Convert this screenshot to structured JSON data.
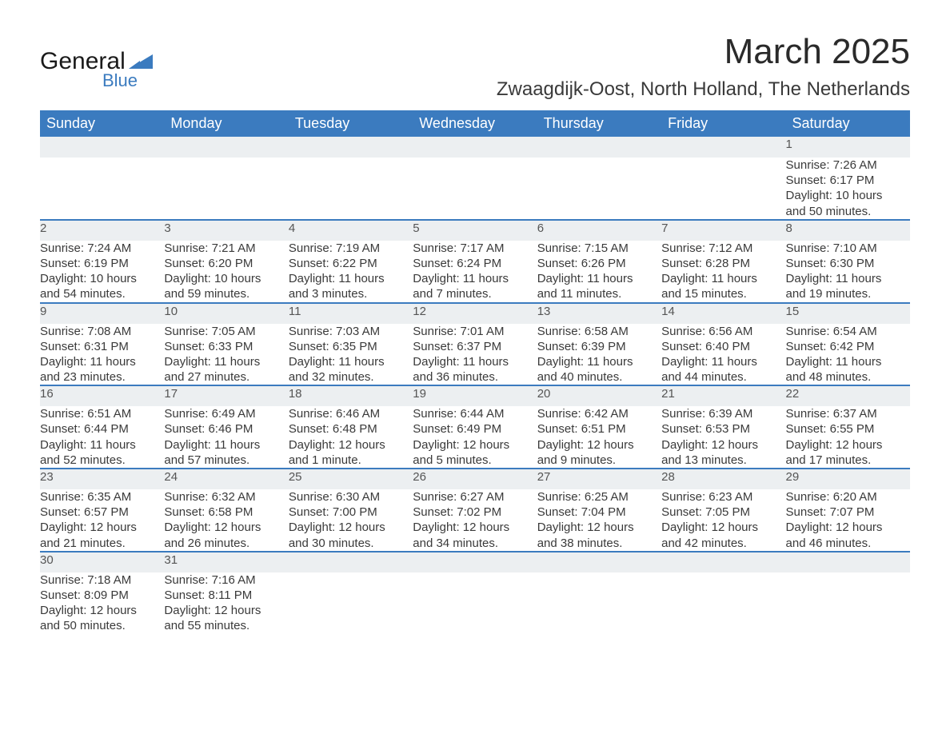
{
  "logo": {
    "main": "General",
    "sub": "Blue",
    "triangle_color": "#3b7bbf"
  },
  "title": "March 2025",
  "location": "Zwaagdijk-Oost, North Holland, The Netherlands",
  "colors": {
    "header_bg": "#3b7bbf",
    "header_text": "#ffffff",
    "daynum_bg": "#eceff1",
    "row_divider": "#3b7bbf",
    "text": "#3a3a3a",
    "background": "#ffffff"
  },
  "fonts": {
    "title_size_pt": 33,
    "location_size_pt": 18,
    "header_size_pt": 14,
    "body_size_pt": 11
  },
  "weekdays": [
    "Sunday",
    "Monday",
    "Tuesday",
    "Wednesday",
    "Thursday",
    "Friday",
    "Saturday"
  ],
  "weeks": [
    [
      null,
      null,
      null,
      null,
      null,
      null,
      {
        "d": "1",
        "sr": "Sunrise: 7:26 AM",
        "ss": "Sunset: 6:17 PM",
        "dl1": "Daylight: 10 hours",
        "dl2": "and 50 minutes."
      }
    ],
    [
      {
        "d": "2",
        "sr": "Sunrise: 7:24 AM",
        "ss": "Sunset: 6:19 PM",
        "dl1": "Daylight: 10 hours",
        "dl2": "and 54 minutes."
      },
      {
        "d": "3",
        "sr": "Sunrise: 7:21 AM",
        "ss": "Sunset: 6:20 PM",
        "dl1": "Daylight: 10 hours",
        "dl2": "and 59 minutes."
      },
      {
        "d": "4",
        "sr": "Sunrise: 7:19 AM",
        "ss": "Sunset: 6:22 PM",
        "dl1": "Daylight: 11 hours",
        "dl2": "and 3 minutes."
      },
      {
        "d": "5",
        "sr": "Sunrise: 7:17 AM",
        "ss": "Sunset: 6:24 PM",
        "dl1": "Daylight: 11 hours",
        "dl2": "and 7 minutes."
      },
      {
        "d": "6",
        "sr": "Sunrise: 7:15 AM",
        "ss": "Sunset: 6:26 PM",
        "dl1": "Daylight: 11 hours",
        "dl2": "and 11 minutes."
      },
      {
        "d": "7",
        "sr": "Sunrise: 7:12 AM",
        "ss": "Sunset: 6:28 PM",
        "dl1": "Daylight: 11 hours",
        "dl2": "and 15 minutes."
      },
      {
        "d": "8",
        "sr": "Sunrise: 7:10 AM",
        "ss": "Sunset: 6:30 PM",
        "dl1": "Daylight: 11 hours",
        "dl2": "and 19 minutes."
      }
    ],
    [
      {
        "d": "9",
        "sr": "Sunrise: 7:08 AM",
        "ss": "Sunset: 6:31 PM",
        "dl1": "Daylight: 11 hours",
        "dl2": "and 23 minutes."
      },
      {
        "d": "10",
        "sr": "Sunrise: 7:05 AM",
        "ss": "Sunset: 6:33 PM",
        "dl1": "Daylight: 11 hours",
        "dl2": "and 27 minutes."
      },
      {
        "d": "11",
        "sr": "Sunrise: 7:03 AM",
        "ss": "Sunset: 6:35 PM",
        "dl1": "Daylight: 11 hours",
        "dl2": "and 32 minutes."
      },
      {
        "d": "12",
        "sr": "Sunrise: 7:01 AM",
        "ss": "Sunset: 6:37 PM",
        "dl1": "Daylight: 11 hours",
        "dl2": "and 36 minutes."
      },
      {
        "d": "13",
        "sr": "Sunrise: 6:58 AM",
        "ss": "Sunset: 6:39 PM",
        "dl1": "Daylight: 11 hours",
        "dl2": "and 40 minutes."
      },
      {
        "d": "14",
        "sr": "Sunrise: 6:56 AM",
        "ss": "Sunset: 6:40 PM",
        "dl1": "Daylight: 11 hours",
        "dl2": "and 44 minutes."
      },
      {
        "d": "15",
        "sr": "Sunrise: 6:54 AM",
        "ss": "Sunset: 6:42 PM",
        "dl1": "Daylight: 11 hours",
        "dl2": "and 48 minutes."
      }
    ],
    [
      {
        "d": "16",
        "sr": "Sunrise: 6:51 AM",
        "ss": "Sunset: 6:44 PM",
        "dl1": "Daylight: 11 hours",
        "dl2": "and 52 minutes."
      },
      {
        "d": "17",
        "sr": "Sunrise: 6:49 AM",
        "ss": "Sunset: 6:46 PM",
        "dl1": "Daylight: 11 hours",
        "dl2": "and 57 minutes."
      },
      {
        "d": "18",
        "sr": "Sunrise: 6:46 AM",
        "ss": "Sunset: 6:48 PM",
        "dl1": "Daylight: 12 hours",
        "dl2": "and 1 minute."
      },
      {
        "d": "19",
        "sr": "Sunrise: 6:44 AM",
        "ss": "Sunset: 6:49 PM",
        "dl1": "Daylight: 12 hours",
        "dl2": "and 5 minutes."
      },
      {
        "d": "20",
        "sr": "Sunrise: 6:42 AM",
        "ss": "Sunset: 6:51 PM",
        "dl1": "Daylight: 12 hours",
        "dl2": "and 9 minutes."
      },
      {
        "d": "21",
        "sr": "Sunrise: 6:39 AM",
        "ss": "Sunset: 6:53 PM",
        "dl1": "Daylight: 12 hours",
        "dl2": "and 13 minutes."
      },
      {
        "d": "22",
        "sr": "Sunrise: 6:37 AM",
        "ss": "Sunset: 6:55 PM",
        "dl1": "Daylight: 12 hours",
        "dl2": "and 17 minutes."
      }
    ],
    [
      {
        "d": "23",
        "sr": "Sunrise: 6:35 AM",
        "ss": "Sunset: 6:57 PM",
        "dl1": "Daylight: 12 hours",
        "dl2": "and 21 minutes."
      },
      {
        "d": "24",
        "sr": "Sunrise: 6:32 AM",
        "ss": "Sunset: 6:58 PM",
        "dl1": "Daylight: 12 hours",
        "dl2": "and 26 minutes."
      },
      {
        "d": "25",
        "sr": "Sunrise: 6:30 AM",
        "ss": "Sunset: 7:00 PM",
        "dl1": "Daylight: 12 hours",
        "dl2": "and 30 minutes."
      },
      {
        "d": "26",
        "sr": "Sunrise: 6:27 AM",
        "ss": "Sunset: 7:02 PM",
        "dl1": "Daylight: 12 hours",
        "dl2": "and 34 minutes."
      },
      {
        "d": "27",
        "sr": "Sunrise: 6:25 AM",
        "ss": "Sunset: 7:04 PM",
        "dl1": "Daylight: 12 hours",
        "dl2": "and 38 minutes."
      },
      {
        "d": "28",
        "sr": "Sunrise: 6:23 AM",
        "ss": "Sunset: 7:05 PM",
        "dl1": "Daylight: 12 hours",
        "dl2": "and 42 minutes."
      },
      {
        "d": "29",
        "sr": "Sunrise: 6:20 AM",
        "ss": "Sunset: 7:07 PM",
        "dl1": "Daylight: 12 hours",
        "dl2": "and 46 minutes."
      }
    ],
    [
      {
        "d": "30",
        "sr": "Sunrise: 7:18 AM",
        "ss": "Sunset: 8:09 PM",
        "dl1": "Daylight: 12 hours",
        "dl2": "and 50 minutes."
      },
      {
        "d": "31",
        "sr": "Sunrise: 7:16 AM",
        "ss": "Sunset: 8:11 PM",
        "dl1": "Daylight: 12 hours",
        "dl2": "and 55 minutes."
      },
      null,
      null,
      null,
      null,
      null
    ]
  ]
}
